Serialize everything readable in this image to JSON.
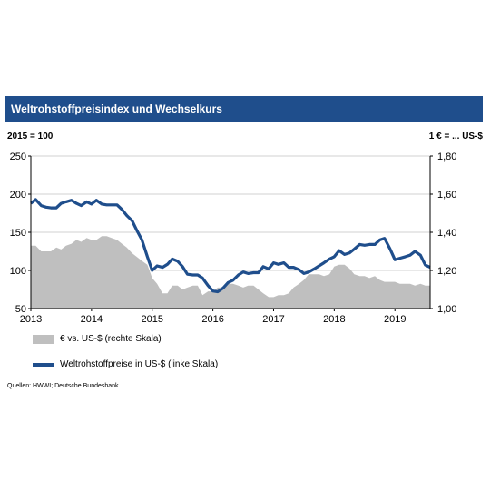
{
  "header": {
    "title": "Weltrohstoffpreisindex  und Wechselkurs"
  },
  "chart_data": {
    "type": "line",
    "left_unit": "2015 = 100",
    "right_unit": "1 € = ... US-$",
    "x_ticks": [
      "2013",
      "2014",
      "2015",
      "2016",
      "2017",
      "2018",
      "2019"
    ],
    "xlim": [
      2013,
      2019.58
    ],
    "ylim_left": [
      50,
      250
    ],
    "y_ticks_left": [
      "50",
      "100",
      "150",
      "200",
      "250"
    ],
    "ylim_right": [
      1.0,
      1.8
    ],
    "y_ticks_right": [
      "1,00",
      "1,20",
      "1,40",
      "1,60",
      "1,80"
    ],
    "grid": "horizontal",
    "series": [
      {
        "name": "€ vs. US-$ (rechte Skala)",
        "axis": "right",
        "style": "area",
        "color": "#bfbfbf",
        "x": [
          2013.0,
          2013.08,
          2013.17,
          2013.25,
          2013.33,
          2013.42,
          2013.5,
          2013.58,
          2013.67,
          2013.75,
          2013.83,
          2013.92,
          2014.0,
          2014.08,
          2014.17,
          2014.25,
          2014.33,
          2014.42,
          2014.5,
          2014.58,
          2014.67,
          2014.75,
          2014.83,
          2014.92,
          2015.0,
          2015.08,
          2015.17,
          2015.25,
          2015.33,
          2015.42,
          2015.5,
          2015.58,
          2015.67,
          2015.75,
          2015.83,
          2015.92,
          2016.0,
          2016.08,
          2016.17,
          2016.25,
          2016.33,
          2016.42,
          2016.5,
          2016.58,
          2016.67,
          2016.75,
          2016.83,
          2016.92,
          2017.0,
          2017.08,
          2017.17,
          2017.25,
          2017.33,
          2017.42,
          2017.5,
          2017.58,
          2017.67,
          2017.75,
          2017.83,
          2017.92,
          2018.0,
          2018.08,
          2018.17,
          2018.25,
          2018.33,
          2018.42,
          2018.5,
          2018.58,
          2018.67,
          2018.75,
          2018.83,
          2018.92,
          2019.0,
          2019.08,
          2019.17,
          2019.25,
          2019.33,
          2019.42,
          2019.5,
          2019.58
        ],
        "values": [
          1.33,
          1.33,
          1.3,
          1.3,
          1.3,
          1.32,
          1.31,
          1.33,
          1.34,
          1.36,
          1.35,
          1.37,
          1.36,
          1.36,
          1.38,
          1.38,
          1.37,
          1.36,
          1.34,
          1.32,
          1.29,
          1.27,
          1.25,
          1.23,
          1.16,
          1.13,
          1.08,
          1.08,
          1.12,
          1.12,
          1.1,
          1.11,
          1.12,
          1.12,
          1.07,
          1.09,
          1.09,
          1.11,
          1.11,
          1.13,
          1.13,
          1.12,
          1.11,
          1.12,
          1.12,
          1.1,
          1.08,
          1.06,
          1.06,
          1.07,
          1.07,
          1.08,
          1.11,
          1.13,
          1.15,
          1.18,
          1.18,
          1.18,
          1.17,
          1.18,
          1.22,
          1.23,
          1.23,
          1.21,
          1.18,
          1.17,
          1.17,
          1.16,
          1.17,
          1.15,
          1.14,
          1.14,
          1.14,
          1.13,
          1.13,
          1.13,
          1.12,
          1.13,
          1.12,
          1.12
        ]
      },
      {
        "name": "Weltrohstoffpreise in US-$ (linke Skala)",
        "axis": "left",
        "style": "line",
        "color": "#1f4e8c",
        "x": [
          2013.0,
          2013.08,
          2013.17,
          2013.25,
          2013.33,
          2013.42,
          2013.5,
          2013.58,
          2013.67,
          2013.75,
          2013.83,
          2013.92,
          2014.0,
          2014.08,
          2014.17,
          2014.25,
          2014.33,
          2014.42,
          2014.5,
          2014.58,
          2014.67,
          2014.75,
          2014.83,
          2014.92,
          2015.0,
          2015.08,
          2015.17,
          2015.25,
          2015.33,
          2015.42,
          2015.5,
          2015.58,
          2015.67,
          2015.75,
          2015.83,
          2015.92,
          2016.0,
          2016.08,
          2016.17,
          2016.25,
          2016.33,
          2016.42,
          2016.5,
          2016.58,
          2016.67,
          2016.75,
          2016.83,
          2016.92,
          2017.0,
          2017.08,
          2017.17,
          2017.25,
          2017.33,
          2017.42,
          2017.5,
          2017.58,
          2017.67,
          2017.75,
          2017.83,
          2017.92,
          2018.0,
          2018.08,
          2018.17,
          2018.25,
          2018.33,
          2018.42,
          2018.5,
          2018.58,
          2018.67,
          2018.75,
          2018.83,
          2018.92,
          2019.0,
          2019.08,
          2019.17,
          2019.25,
          2019.33,
          2019.42,
          2019.5,
          2019.58
        ],
        "values": [
          188,
          193,
          185,
          183,
          182,
          182,
          188,
          190,
          192,
          188,
          185,
          190,
          187,
          192,
          187,
          186,
          186,
          186,
          180,
          172,
          165,
          152,
          140,
          118,
          100,
          106,
          104,
          108,
          115,
          112,
          105,
          95,
          94,
          94,
          90,
          80,
          73,
          72,
          77,
          84,
          87,
          94,
          98,
          96,
          97,
          97,
          105,
          102,
          110,
          108,
          110,
          104,
          104,
          101,
          96,
          98,
          102,
          106,
          110,
          115,
          118,
          126,
          121,
          123,
          128,
          134,
          133,
          134,
          134,
          140,
          142,
          128,
          114,
          116,
          118,
          120,
          125,
          120,
          107,
          104
        ]
      }
    ]
  },
  "legend": {
    "area_label": "€ vs. US-$ (rechte Skala)",
    "line_label": "Weltrohstoffpreise in US-$ (linke Skala)"
  },
  "footer": {
    "source": "Quellen:  HWWI; Deutsche  Bundesbank"
  }
}
